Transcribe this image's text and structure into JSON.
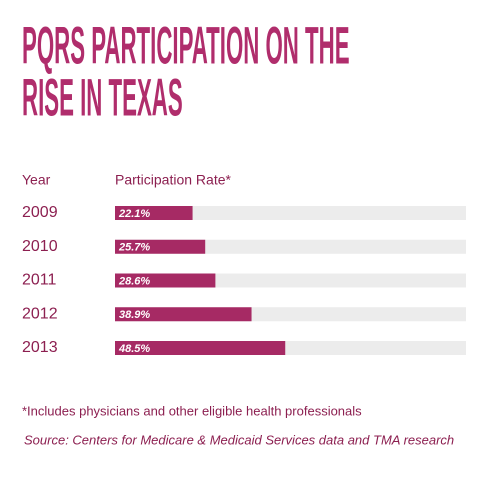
{
  "chart_data": {
    "type": "bar",
    "orientation": "horizontal",
    "title": "PQRS PARTICIPATION ON THE RISE IN TEXAS",
    "category_header": "Year",
    "value_header": "Participation Rate*",
    "categories": [
      "2009",
      "2010",
      "2011",
      "2012",
      "2013"
    ],
    "values": [
      22.1,
      25.7,
      28.6,
      38.9,
      48.5
    ],
    "value_labels": [
      "22.1%",
      "25.7%",
      "28.6%",
      "38.9%",
      "48.5%"
    ],
    "color": "#a62a64",
    "track_color": "#ececec",
    "xlim": [
      0,
      100
    ],
    "footnote": "*Includes physicians and other eligible health professionals",
    "source": "Source: Centers for Medicare & Medicaid Services data and TMA research"
  }
}
